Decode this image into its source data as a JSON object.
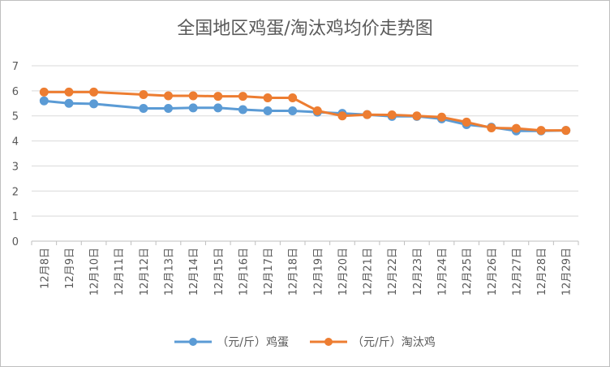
{
  "chart_data": {
    "type": "line",
    "title": "全国地区鸡蛋/淘汰鸡均价走势图",
    "categories": [
      "12月8日",
      "12月9日",
      "12月10日",
      "12月11日",
      "12月12日",
      "12月13日",
      "12月14日",
      "12月15日",
      "12月16日",
      "12月17日",
      "12月18日",
      "12月19日",
      "12月20日",
      "12月21日",
      "12月22日",
      "12月23日",
      "12月24日",
      "12月25日",
      "12月26日",
      "12月27日",
      "12月28日",
      "12月29日"
    ],
    "ylim": [
      0,
      7
    ],
    "yticks": [
      0,
      1,
      2,
      3,
      4,
      5,
      6,
      7
    ],
    "grid": true,
    "legend_position": "bottom",
    "series": [
      {
        "name": "（元/斤）鸡蛋",
        "color": "#5b9bd5",
        "values": [
          5.6,
          5.5,
          5.48,
          null,
          5.3,
          5.3,
          5.32,
          5.32,
          5.25,
          5.2,
          5.2,
          5.15,
          5.1,
          5.05,
          4.98,
          4.98,
          4.88,
          4.65,
          4.55,
          4.4,
          4.4,
          4.42
        ]
      },
      {
        "name": "（元/斤）淘汰鸡",
        "color": "#ed7d31",
        "values": [
          5.95,
          5.95,
          5.95,
          null,
          5.85,
          5.8,
          5.8,
          5.78,
          5.78,
          5.72,
          5.72,
          5.2,
          5.0,
          5.05,
          5.04,
          5.0,
          4.95,
          4.75,
          4.52,
          4.5,
          4.42,
          4.42
        ]
      }
    ]
  }
}
